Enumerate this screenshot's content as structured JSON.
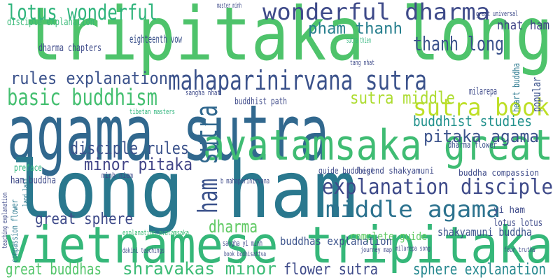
{
  "words": [
    "tripitaka long",
    "agama sutra",
    "long ham",
    "vietnamese tripitaka",
    "avatamsaka great",
    "mahaparinirvana sutra",
    "wonderful dharma",
    "lotus wonderful",
    "pham thanh",
    "thanh long",
    "nhat ham",
    "sutra book",
    "basic buddhism",
    "rules explanation",
    "sutra middle",
    "buddhist studies",
    "pitaka agama",
    "disciple rules",
    "minor pitaka",
    "sutra",
    "ham",
    "explanation disciple",
    "middle agama",
    "great sphere",
    "dharma",
    "shravakas minor",
    "great buddhas",
    "flower sutra",
    "sphere explanation",
    "complete guide",
    "buddhas explanation",
    "shakyamuni buddha",
    "lotus lotus",
    "yi ham",
    "ham buddha",
    "preface",
    "eighteenth vow",
    "dharma chapters",
    "disciple explanation",
    "sangha nhat",
    "buddhist path",
    "tibetan masters",
    "milarepa",
    "popular",
    "heart buddha",
    "dharma flower",
    "buddha compassion",
    "legend shakyamuni",
    "guide buddhist",
    "minh niem",
    "compassion flower",
    "explanation avatamsaka",
    "sangha yi minh",
    "book bodhisattva",
    "great universal",
    "master minh",
    "b mahaparinirvana",
    "sutra thien",
    "tang nhat",
    "four truths",
    "milarepa song",
    "journey map",
    "dakini teachings",
    "land land",
    "teaching explanation"
  ]
}
